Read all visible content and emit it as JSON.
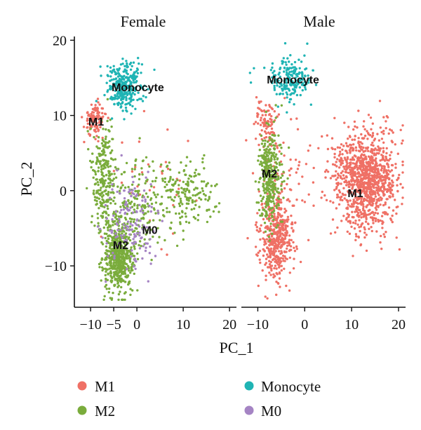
{
  "chart_data": [
    {
      "type": "scatter",
      "title": "Female",
      "xlabel": "PC_1",
      "ylabel": "PC_2",
      "xlim": [
        -13.5,
        21.5
      ],
      "ylim": [
        -15.5,
        20.5
      ],
      "x_ticks": [
        "−10",
        "−5",
        "0",
        "10",
        "20"
      ],
      "y_ticks": [
        "20",
        "10",
        "0",
        "−10"
      ],
      "cluster_labels": [
        {
          "text": "Monocyte",
          "x": 0.2,
          "y": 13.8
        },
        {
          "text": "M1",
          "x": -8.8,
          "y": 9.2
        },
        {
          "text": "M0",
          "x": 2.8,
          "y": -5.2
        },
        {
          "text": "M2",
          "x": -3.5,
          "y": -7.2
        }
      ],
      "series": [
        {
          "name": "M1",
          "color": "#ef7065",
          "clusters": [
            {
              "cx": -9,
              "cy": 9.5,
              "sx": 1.2,
              "sy": 1.1,
              "n": 110
            },
            {
              "cx": 4,
              "cy": 1,
              "sx": 4.5,
              "sy": 3.5,
              "n": 35
            }
          ]
        },
        {
          "name": "M2",
          "color": "#7aac3c",
          "clusters": [
            {
              "cx": -4,
              "cy": -9,
              "sx": 1.6,
              "sy": 2.2,
              "n": 520
            },
            {
              "cx": -7,
              "cy": 2,
              "sx": 1.2,
              "sy": 3.8,
              "n": 240
            },
            {
              "cx": 11,
              "cy": -0.5,
              "sx": 3.3,
              "sy": 2,
              "n": 180
            },
            {
              "cx": -1,
              "cy": -2,
              "sx": 4,
              "sy": 3.5,
              "n": 220
            }
          ]
        },
        {
          "name": "Monocyte",
          "color": "#1fb4b4",
          "clusters": [
            {
              "cx": -2.5,
              "cy": 13.8,
              "sx": 2,
              "sy": 1.6,
              "n": 290
            }
          ]
        },
        {
          "name": "M0",
          "color": "#a584c4",
          "clusters": [
            {
              "cx": -1.5,
              "cy": -4,
              "sx": 2.8,
              "sy": 3,
              "n": 150
            }
          ]
        }
      ]
    },
    {
      "type": "scatter",
      "title": "Male",
      "xlabel": "PC_1",
      "ylabel": "PC_2",
      "xlim": [
        -13.5,
        21.5
      ],
      "ylim": [
        -15.5,
        20.5
      ],
      "x_ticks": [
        "−10",
        "0",
        "10",
        "20"
      ],
      "cluster_labels": [
        {
          "text": "Monocyte",
          "x": -2.5,
          "y": 14.8
        },
        {
          "text": "M2",
          "x": -7.5,
          "y": 2.3
        },
        {
          "text": "M1",
          "x": 10.8,
          "y": -0.3
        }
      ],
      "series": [
        {
          "name": "M1",
          "color": "#ef7065",
          "clusters": [
            {
              "cx": 13,
              "cy": 1.5,
              "sx": 3.3,
              "sy": 3.3,
              "n": 1050
            },
            {
              "cx": -6,
              "cy": -6.5,
              "sx": 1.8,
              "sy": 2.8,
              "n": 420
            },
            {
              "cx": -8.5,
              "cy": 9,
              "sx": 1.1,
              "sy": 1.6,
              "n": 90
            },
            {
              "cx": -4,
              "cy": 2,
              "sx": 3,
              "sy": 4,
              "n": 80
            }
          ]
        },
        {
          "name": "M2",
          "color": "#7aac3c",
          "clusters": [
            {
              "cx": -7.5,
              "cy": 2,
              "sx": 1.2,
              "sy": 3.3,
              "n": 330
            }
          ]
        },
        {
          "name": "Monocyte",
          "color": "#1fb4b4",
          "clusters": [
            {
              "cx": -3.5,
              "cy": 15,
              "sx": 2.2,
              "sy": 1.5,
              "n": 190
            }
          ]
        }
      ]
    }
  ],
  "legend": [
    {
      "label": "M1",
      "color": "#ef7065"
    },
    {
      "label": "Monocyte",
      "color": "#1fb4b4"
    },
    {
      "label": "M2",
      "color": "#7aac3c"
    },
    {
      "label": "M0",
      "color": "#a584c4"
    }
  ]
}
